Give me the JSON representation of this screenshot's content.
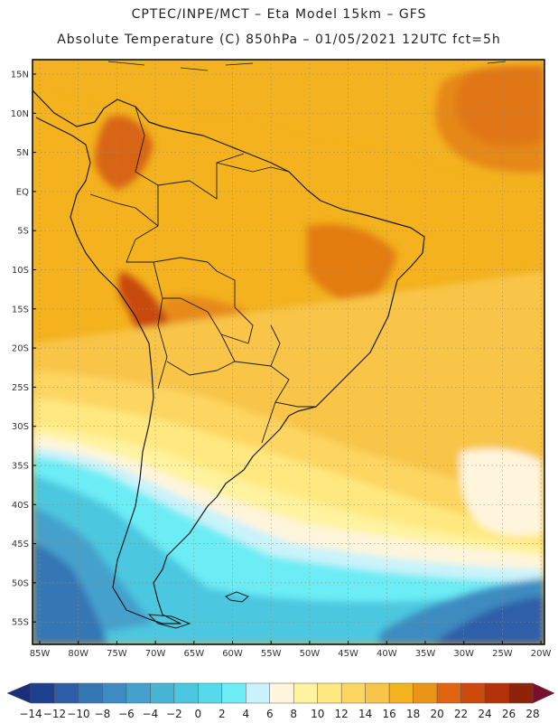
{
  "title": {
    "line1": "CPTEC/INPE/MCT –   Eta Model 15km – GFS",
    "line2": "Absolute Temperature (C) 850hPa – 01/05/2021 12UTC fct=5h"
  },
  "lat_labels": [
    "15N",
    "10N",
    "5N",
    "EQ",
    "5S",
    "10S",
    "15S",
    "20S",
    "25S",
    "30S",
    "35S",
    "40S",
    "45S",
    "50S",
    "55S"
  ],
  "lon_labels": [
    "85W",
    "80W",
    "75W",
    "70W",
    "65W",
    "60W",
    "55W",
    "50W",
    "45W",
    "40W",
    "35W",
    "30W",
    "25W",
    "20W"
  ],
  "colorbar": {
    "labels": [
      "-14",
      "-12",
      "-10",
      "-8",
      "-6",
      "-4",
      "-2",
      "0",
      "2",
      "4",
      "6",
      "8",
      "10",
      "12",
      "14",
      "16",
      "18",
      "20",
      "22",
      "24",
      "26",
      "28"
    ],
    "colors": [
      "#1f3f8f",
      "#2e5ea8",
      "#3676b5",
      "#3e8bc1",
      "#44a0cc",
      "#48b4d6",
      "#4cc7e0",
      "#56d9ea",
      "#6cecf5",
      "#c9f3fa",
      "#fff5dc",
      "#fff3a0",
      "#ffe880",
      "#fdd662",
      "#f8c54a",
      "#f3b21e",
      "#ea9518",
      "#e06510",
      "#cc4a0c",
      "#b33209",
      "#8e2307"
    ],
    "under_color": "#1a2f7a",
    "over_color": "#7a1030"
  },
  "map": {
    "ocean_color": "#f3b21e",
    "border_color": "#1a1a1a"
  }
}
